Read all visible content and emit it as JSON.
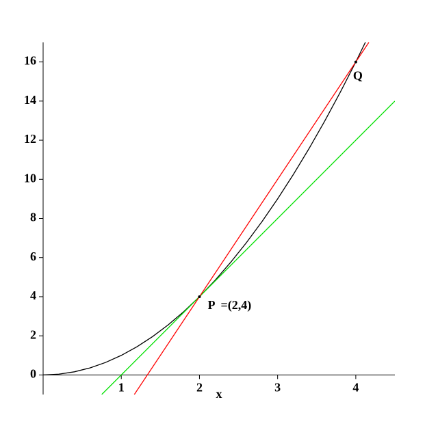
{
  "chart_data": {
    "type": "line",
    "x_label": "x",
    "xlim": [
      0,
      4.5
    ],
    "ylim": [
      -1,
      17
    ],
    "xticks": [
      1,
      2,
      3,
      4
    ],
    "yticks": [
      0,
      2,
      4,
      6,
      8,
      10,
      12,
      14,
      16
    ],
    "series": [
      {
        "color": "#000000",
        "x": [
          0,
          0.2,
          0.4,
          0.6,
          0.8,
          1,
          1.2,
          1.4,
          1.6,
          1.8,
          2,
          2.2,
          2.4,
          2.6,
          2.8,
          3,
          3.2,
          3.4,
          3.6,
          3.8,
          4,
          4.2
        ],
        "values": [
          0,
          0.04,
          0.16,
          0.36,
          0.64,
          1,
          1.44,
          1.96,
          2.56,
          3.24,
          4,
          4.84,
          5.76,
          6.76,
          7.84,
          9,
          10.24,
          11.56,
          12.96,
          14.44,
          16,
          17.64
        ]
      },
      {
        "color": "#00e000",
        "x": [
          0.75,
          4.5
        ],
        "values": [
          -1,
          14
        ]
      },
      {
        "color": "#ff0000",
        "x": [
          1.1667,
          4.1667
        ],
        "values": [
          -1,
          17
        ]
      }
    ],
    "points": [
      {
        "x": 2,
        "y": 4
      },
      {
        "x": 4,
        "y": 16
      }
    ],
    "annotations": [
      "P  =(2,4)",
      "Q"
    ]
  }
}
